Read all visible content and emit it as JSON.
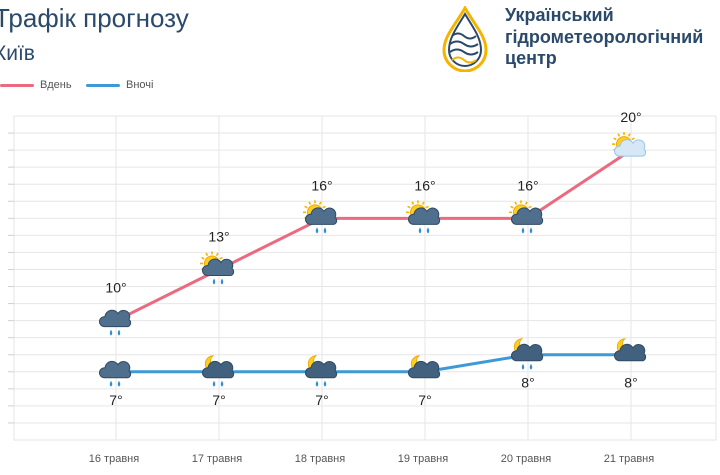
{
  "header": {
    "title": "Трафік прогнозу",
    "city": "Київ",
    "org_lines": [
      "Український",
      "гідрометеорологічний",
      "центр"
    ]
  },
  "colors": {
    "day": "#ec6a80",
    "night": "#3e9ad6",
    "grid": "#e6e6e6",
    "text": "#2b4a6b"
  },
  "legend": {
    "day_label": "Вдень",
    "night_label": "Вночі"
  },
  "chart_data": {
    "type": "line",
    "categories": [
      "16 травня",
      "17 травня",
      "18 травня",
      "19 травня",
      "20 травня",
      "21 травня"
    ],
    "series": [
      {
        "name": "Вдень",
        "values": [
          10,
          13,
          16,
          16,
          16,
          20
        ],
        "labels": [
          "10°",
          "13°",
          "16°",
          "16°",
          "16°",
          "20°"
        ],
        "icons": [
          "cloud-rain-icon",
          "sun-cloud-rain-icon",
          "sun-cloud-rain-icon",
          "sun-cloud-rain-icon",
          "sun-cloud-rain-icon",
          "sun-cloud-icon"
        ]
      },
      {
        "name": "Вночі",
        "values": [
          7,
          7,
          7,
          7,
          8,
          8
        ],
        "labels": [
          "7°",
          "7°",
          "7°",
          "7°",
          "8°",
          "8°"
        ],
        "icons": [
          "cloud-rain-icon",
          "moon-cloud-rain-icon",
          "moon-cloud-rain-icon",
          "moon-cloud-icon",
          "moon-cloud-rain-icon",
          "moon-cloud-icon"
        ]
      }
    ],
    "ylim": [
      3,
      22
    ],
    "grid": true,
    "legend_position": "top-left"
  }
}
